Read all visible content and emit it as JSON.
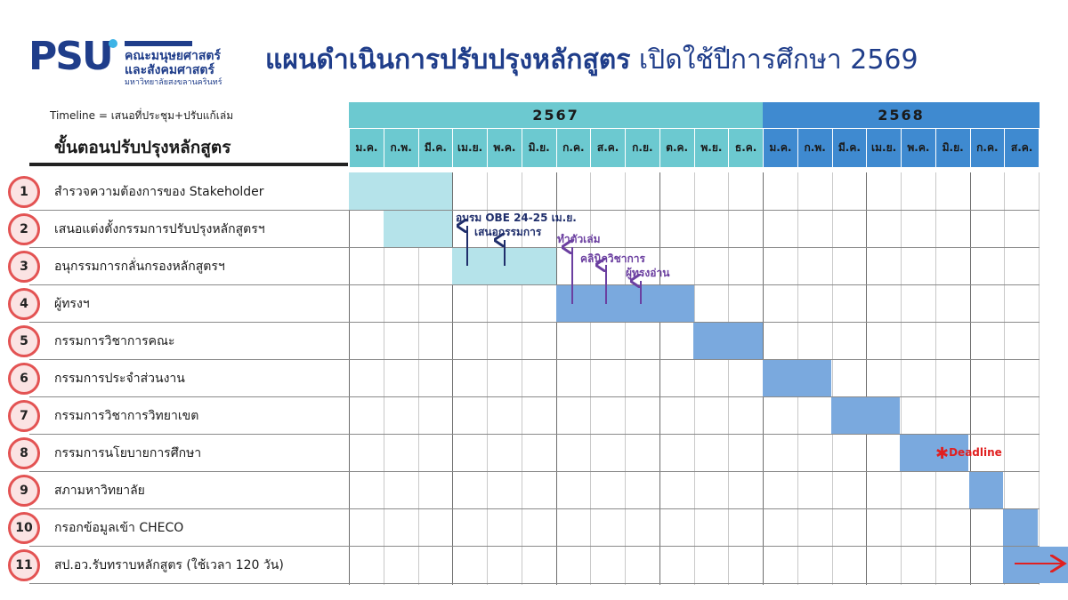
{
  "logo": {
    "mark": "PSU",
    "line1": "คณะมนุษยศาสตร์",
    "line2": "และสังคมศาสตร์",
    "line3": "มหาวิทยาลัยสงขลานครินทร์"
  },
  "title_bold": "แผนดำเนินการปรับปรุงหลักสูตร",
  "title_rest": " เปิดใช้ปีการศึกษา 2569",
  "timeline_note": "Timeline = เสนอที่ประชุม+ปรับแก้เล่ม",
  "steps_header": "ขั้นตอนปรับปรุงหลักสูตร",
  "years": [
    "2567",
    "2568"
  ],
  "months": [
    "ม.ค.",
    "ก.พ.",
    "มี.ค.",
    "เม.ย.",
    "พ.ค.",
    "มิ.ย.",
    "ก.ค.",
    "ส.ค.",
    "ก.ย.",
    "ต.ค.",
    "พ.ย.",
    "ธ.ค.",
    "ม.ค.",
    "ก.พ.",
    "มี.ค.",
    "เม.ย.",
    "พ.ค.",
    "มิ.ย.",
    "ก.ค.",
    "ส.ค."
  ],
  "steps": [
    {
      "num": "1",
      "label": "สำรวจความต้องการของ Stakeholder"
    },
    {
      "num": "2",
      "label": "เสนอแต่งตั้งกรรมการปรับปรุงหลักสูตรฯ"
    },
    {
      "num": "3",
      "label": "อนุกรรมการกลั่นกรองหลักสูตรฯ"
    },
    {
      "num": "4",
      "label": "ผู้ทรงฯ"
    },
    {
      "num": "5",
      "label": "กรรมการวิชาการคณะ"
    },
    {
      "num": "6",
      "label": "กรรมการประจำส่วนงาน"
    },
    {
      "num": "7",
      "label": "กรรมการวิชาการวิทยาเขต"
    },
    {
      "num": "8",
      "label": "กรรมการนโยบายการศึกษา"
    },
    {
      "num": "9",
      "label": "สภามหาวิทยาลัย"
    },
    {
      "num": "10",
      "label": "กรอกข้อมูลเข้า CHECO"
    },
    {
      "num": "11",
      "label": "สป.อว.รับทราบหลักสูตร (ใช้เวลา 120 วัน)"
    }
  ],
  "annotations": {
    "obe": "อบรม OBE 24-25 เม.ย.",
    "committee": "เสนอกรรมการ",
    "make_book": "ทำตัวเล่ม",
    "clinic": "คลินิกวิชาการ",
    "reader": "ผู้ทรงอ่าน",
    "deadline": "Deadline",
    "deadline_mark": "✱"
  },
  "colors": {
    "brand_navy": "#1f3d8a",
    "year_2567": "#6cc9d0",
    "year_2568": "#3f8ad0",
    "bar_light": "#b5e3ea",
    "bar_blue": "#7aa9de",
    "number_circle_border": "#e35353",
    "deadline_red": "#e02020"
  }
}
